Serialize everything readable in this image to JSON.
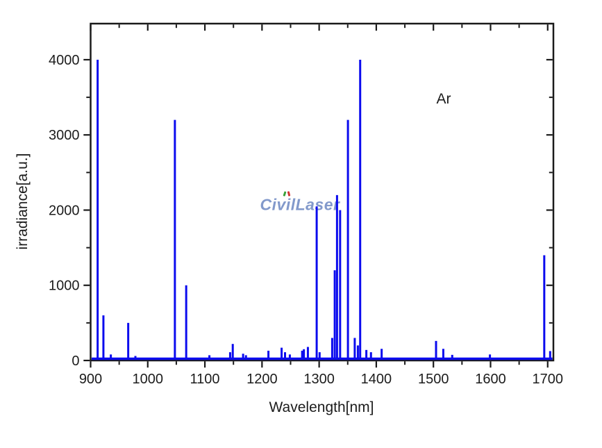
{
  "figure": {
    "annotation_text": "Ar",
    "watermark_text": "CivilLaser",
    "watermark_color": "#8299cb"
  },
  "chart_data": {
    "type": "bar",
    "subtype": "stem-spectrum",
    "title": "",
    "xlabel": "Wavelength[nm]",
    "ylabel": "irradiance[a.u.]",
    "xlim": [
      900,
      1710
    ],
    "ylim": [
      0,
      4480
    ],
    "grid": false,
    "legend": "none",
    "line_color": "#0b0bee",
    "axis_color": "#1a1a1a",
    "x_major_ticks": [
      900,
      1000,
      1100,
      1200,
      1300,
      1400,
      1500,
      1600,
      1700
    ],
    "x_minor_ticks": [
      950,
      1050,
      1150,
      1250,
      1350,
      1450,
      1550,
      1650
    ],
    "y_major_ticks": [
      0,
      1000,
      2000,
      3000,
      4000
    ],
    "y_minor_ticks": [
      500,
      1500,
      2500,
      3500
    ],
    "x": [
      912.3,
      922.4,
      935.4,
      965.8,
      978.4,
      1047.5,
      1067.3,
      1107.9,
      1144.2,
      1148.8,
      1166.9,
      1171.9,
      1211.2,
      1234.3,
      1240.3,
      1248.7,
      1270.2,
      1273.3,
      1280.3,
      1295.7,
      1300.8,
      1322.8,
      1327.3,
      1331.3,
      1336.7,
      1350.4,
      1362.3,
      1367.8,
      1371.8,
      1382.6,
      1390.7,
      1409.4,
      1504.6,
      1517.3,
      1532.9,
      1598.9,
      1694.0,
      1704.3
    ],
    "y": [
      4000,
      600,
      80,
      500,
      60,
      3200,
      1000,
      70,
      110,
      220,
      90,
      70,
      130,
      170,
      110,
      80,
      130,
      150,
      180,
      2050,
      110,
      300,
      1200,
      2200,
      2000,
      3200,
      300,
      200,
      4000,
      140,
      110,
      155,
      260,
      155,
      75,
      80,
      1400,
      125
    ]
  }
}
